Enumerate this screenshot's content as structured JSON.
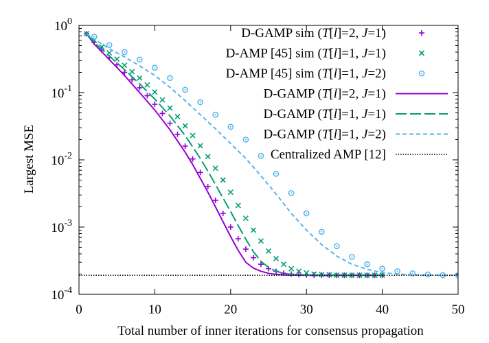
{
  "chart_data": {
    "type": "line",
    "title": "",
    "xlabel": "Total number of inner iterations for consensus propagation",
    "ylabel": "Largest MSE",
    "xlim": [
      0,
      50
    ],
    "ylim": [
      0.0001,
      1
    ],
    "yscale": "log",
    "grid": false,
    "legend_placement": "top-right",
    "x_ticks": [
      "0",
      "10",
      "20",
      "30",
      "40",
      "50"
    ],
    "y_ticks": [
      {
        "base": "10",
        "exp": "0",
        "value": 1
      },
      {
        "base": "10",
        "exp": "-1",
        "value": 0.1
      },
      {
        "base": "10",
        "exp": "-2",
        "value": 0.01
      },
      {
        "base": "10",
        "exp": "-3",
        "value": 0.001
      },
      {
        "base": "10",
        "exp": "-4",
        "value": 0.0001
      }
    ],
    "series": [
      {
        "name": "D-GAMP sim (T[l]=2, J=1)",
        "legend_parts": [
          [
            "D-GAMP sim (",
            ""
          ],
          [
            "T",
            "i"
          ],
          [
            "[",
            ""
          ],
          [
            "l",
            "i"
          ],
          [
            "]=2, ",
            ""
          ],
          [
            "J",
            "i"
          ],
          [
            "=1)",
            ""
          ]
        ],
        "kind": "points",
        "marker": "plus",
        "color": "#9400d3",
        "x": [
          1,
          2,
          3,
          4,
          5,
          6,
          7,
          8,
          9,
          10,
          11,
          12,
          13,
          14,
          15,
          16,
          17,
          18,
          19,
          20,
          21,
          22,
          23,
          24,
          25,
          26,
          27,
          28,
          29,
          30,
          31,
          32,
          33,
          34,
          35,
          36,
          37,
          38,
          39,
          40
        ],
        "y": [
          0.75,
          0.56,
          0.43,
          0.33,
          0.26,
          0.2,
          0.155,
          0.118,
          0.09,
          0.067,
          0.049,
          0.035,
          0.024,
          0.016,
          0.0103,
          0.0065,
          0.004,
          0.0025,
          0.0016,
          0.001,
          0.00067,
          0.00047,
          0.00035,
          0.00028,
          0.00024,
          0.00022,
          0.000206,
          0.0002,
          0.000196,
          0.000194,
          0.000193,
          0.000192,
          0.000192,
          0.000192,
          0.000192,
          0.000192,
          0.000192,
          0.000192,
          0.000192,
          0.000192
        ]
      },
      {
        "name": "D-AMP [45] sim (T[l]=1, J=1)",
        "legend_parts": [
          [
            "D-AMP [45] sim (",
            ""
          ],
          [
            "T",
            "i"
          ],
          [
            "[",
            ""
          ],
          [
            "l",
            "i"
          ],
          [
            "]=1, ",
            ""
          ],
          [
            "J",
            "i"
          ],
          [
            "=1)",
            ""
          ]
        ],
        "kind": "points",
        "marker": "cross",
        "color": "#009e73",
        "x": [
          1,
          2,
          3,
          4,
          5,
          6,
          7,
          8,
          9,
          10,
          11,
          12,
          13,
          14,
          15,
          16,
          17,
          18,
          19,
          20,
          21,
          22,
          23,
          24,
          25,
          26,
          27,
          28,
          29,
          30,
          31,
          32,
          33,
          34,
          35,
          36,
          37,
          38,
          39,
          40
        ],
        "y": [
          0.75,
          0.6,
          0.48,
          0.39,
          0.315,
          0.255,
          0.205,
          0.165,
          0.13,
          0.102,
          0.078,
          0.059,
          0.044,
          0.032,
          0.023,
          0.0162,
          0.0112,
          0.0075,
          0.005,
          0.0033,
          0.0021,
          0.00135,
          0.0009,
          0.00062,
          0.00044,
          0.00034,
          0.00028,
          0.00024,
          0.00022,
          0.000208,
          0.0002,
          0.000197,
          0.000195,
          0.000193,
          0.000193,
          0.000192,
          0.000192,
          0.000192,
          0.000192,
          0.000192
        ]
      },
      {
        "name": "D-AMP [45] sim (T[l]=1, J=2)",
        "legend_parts": [
          [
            "D-AMP [45] sim (",
            ""
          ],
          [
            "T",
            "i"
          ],
          [
            "[",
            ""
          ],
          [
            "l",
            "i"
          ],
          [
            "]=1, ",
            ""
          ],
          [
            "J",
            "i"
          ],
          [
            "=2)",
            ""
          ]
        ],
        "kind": "points",
        "marker": "circle",
        "color": "#56b4e9",
        "x": [
          2,
          4,
          6,
          8,
          10,
          12,
          14,
          16,
          18,
          20,
          22,
          24,
          26,
          28,
          30,
          32,
          34,
          36,
          38,
          40,
          42,
          44,
          46,
          48,
          50
        ],
        "y": [
          0.68,
          0.51,
          0.4,
          0.31,
          0.235,
          0.165,
          0.11,
          0.072,
          0.047,
          0.031,
          0.02,
          0.0115,
          0.0062,
          0.0032,
          0.0016,
          0.00085,
          0.00052,
          0.00036,
          0.00028,
          0.00024,
          0.00022,
          0.000205,
          0.000197,
          0.000193,
          0.000192
        ]
      },
      {
        "name": "D-GAMP (T[l]=2, J=1)",
        "legend_parts": [
          [
            "D-GAMP (",
            ""
          ],
          [
            "T",
            "i"
          ],
          [
            "[",
            ""
          ],
          [
            "l",
            "i"
          ],
          [
            "]=2, ",
            ""
          ],
          [
            "J",
            "i"
          ],
          [
            "=1)",
            ""
          ]
        ],
        "kind": "line",
        "dash": "",
        "color": "#9400d3",
        "x": [
          1,
          2,
          4,
          6,
          8,
          10,
          12,
          14,
          15,
          16,
          17,
          18,
          19,
          20,
          21,
          22,
          23,
          24,
          25,
          26,
          27,
          28,
          30,
          35,
          40
        ],
        "y": [
          0.75,
          0.53,
          0.31,
          0.18,
          0.1,
          0.055,
          0.028,
          0.013,
          0.0085,
          0.0053,
          0.0033,
          0.002,
          0.0012,
          0.00072,
          0.00045,
          0.0003,
          0.000245,
          0.00022,
          0.000205,
          0.000198,
          0.000195,
          0.000193,
          0.000192,
          0.000192,
          0.000192
        ]
      },
      {
        "name": "D-GAMP (T[l]=1, J=1)",
        "legend_parts": [
          [
            "D-GAMP (",
            ""
          ],
          [
            "T",
            "i"
          ],
          [
            "[",
            ""
          ],
          [
            "l",
            "i"
          ],
          [
            "]=1, ",
            ""
          ],
          [
            "J",
            "i"
          ],
          [
            "=1)",
            ""
          ]
        ],
        "kind": "line",
        "dash": "16 5",
        "color": "#009e73",
        "x": [
          1,
          2,
          4,
          6,
          8,
          10,
          12,
          14,
          16,
          17,
          18,
          19,
          20,
          21,
          22,
          23,
          24,
          25,
          26,
          27,
          28,
          29,
          30,
          35,
          40
        ],
        "y": [
          0.75,
          0.56,
          0.35,
          0.22,
          0.135,
          0.08,
          0.045,
          0.023,
          0.0105,
          0.0068,
          0.0043,
          0.0027,
          0.0017,
          0.00105,
          0.00066,
          0.00043,
          0.00031,
          0.00025,
          0.00022,
          0.000205,
          0.000198,
          0.000195,
          0.000193,
          0.000192,
          0.000192
        ]
      },
      {
        "name": "D-GAMP (T[l]=1, J=2)",
        "legend_parts": [
          [
            "D-GAMP (",
            ""
          ],
          [
            "T",
            "i"
          ],
          [
            "[",
            ""
          ],
          [
            "l",
            "i"
          ],
          [
            "]=1, ",
            ""
          ],
          [
            "J",
            "i"
          ],
          [
            "=2)",
            ""
          ]
        ],
        "kind": "line",
        "dash": "6 4",
        "color": "#56b4e9",
        "x": [
          1,
          2,
          4,
          6,
          8,
          10,
          12,
          14,
          16,
          18,
          20,
          22,
          24,
          26,
          28,
          30,
          32,
          34,
          36,
          38,
          40,
          42,
          44,
          46,
          48,
          50
        ],
        "y": [
          0.75,
          0.63,
          0.45,
          0.34,
          0.25,
          0.18,
          0.12,
          0.076,
          0.047,
          0.029,
          0.0175,
          0.0105,
          0.0058,
          0.0031,
          0.0016,
          0.0009,
          0.00055,
          0.00037,
          0.00028,
          0.000235,
          0.00021,
          0.0002,
          0.000195,
          0.000193,
          0.000192,
          0.000192
        ]
      },
      {
        "name": "Centralized AMP [12]",
        "legend_parts": [
          [
            "Centralized AMP [12]",
            ""
          ]
        ],
        "kind": "line",
        "dash": "1.5 2",
        "color": "#000000",
        "x": [
          0,
          50
        ],
        "y": [
          0.000192,
          0.000192
        ]
      }
    ]
  }
}
